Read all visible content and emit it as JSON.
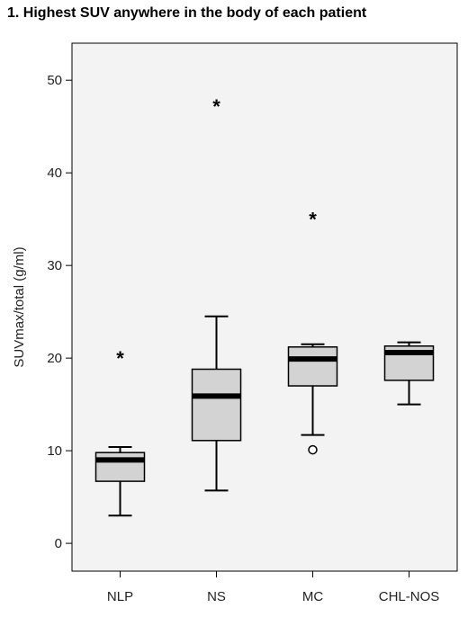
{
  "chart_data": {
    "type": "box",
    "title": "1. Highest SUV anywhere in the body of each patient",
    "xlabel": "",
    "ylabel": "SUVmax/total (g/ml)",
    "ylim": [
      -3,
      54
    ],
    "yticks": [
      0,
      10,
      20,
      30,
      40,
      50
    ],
    "grid": false,
    "box_fill": "#d3d3d3",
    "plot_bg": "#f3f3f3",
    "categories": [
      "NLP",
      "NS",
      "MC",
      "CHL-NOS"
    ],
    "boxes": [
      {
        "category": "NLP",
        "whisker_low": 3.0,
        "q1": 6.7,
        "median": 9.0,
        "q3": 9.8,
        "whisker_high": 10.4,
        "outliers": [
          {
            "value": 20.3,
            "marker": "extreme"
          }
        ]
      },
      {
        "category": "NS",
        "whisker_low": 5.7,
        "q1": 11.1,
        "median": 15.9,
        "q3": 18.8,
        "whisker_high": 24.5,
        "outliers": [
          {
            "value": 47.5,
            "marker": "extreme"
          }
        ]
      },
      {
        "category": "MC",
        "whisker_low": 11.7,
        "q1": 17.0,
        "median": 19.9,
        "q3": 21.2,
        "whisker_high": 21.5,
        "outliers": [
          {
            "value": 35.3,
            "marker": "extreme"
          },
          {
            "value": 10.1,
            "marker": "outlier"
          }
        ]
      },
      {
        "category": "CHL-NOS",
        "whisker_low": 15.0,
        "q1": 17.6,
        "median": 20.6,
        "q3": 21.3,
        "whisker_high": 21.7,
        "outliers": []
      }
    ]
  }
}
